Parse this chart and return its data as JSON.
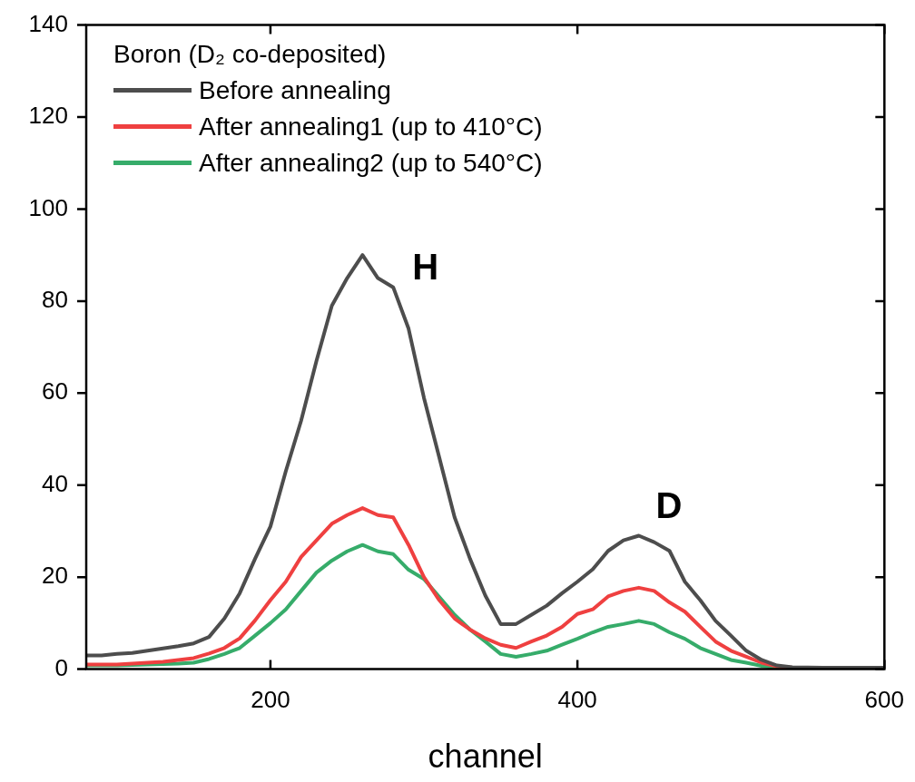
{
  "chart_data": {
    "type": "line",
    "xlabel": "channel",
    "legend_title": "Boron (D₂ co-deposited)",
    "legend": "top left",
    "grid": false,
    "marker": "none",
    "line_style": "solid",
    "x": [
      80,
      90,
      100,
      110,
      120,
      130,
      140,
      150,
      160,
      170,
      180,
      190,
      200,
      210,
      220,
      230,
      240,
      250,
      260,
      270,
      280,
      290,
      300,
      310,
      320,
      330,
      340,
      350,
      360,
      370,
      380,
      390,
      400,
      410,
      420,
      430,
      440,
      450,
      460,
      470,
      480,
      490,
      500,
      510,
      520,
      530,
      540,
      560,
      580,
      600
    ],
    "xlim": [
      80,
      600
    ],
    "xticks": [
      200,
      400,
      600
    ],
    "ylim": [
      0,
      140
    ],
    "yticks": [
      0,
      20,
      40,
      60,
      80,
      100,
      120,
      140
    ],
    "series": [
      {
        "name": "Before annealing",
        "color": "#4d4d4d",
        "values": [
          3,
          3,
          3.3,
          3.5,
          4,
          4.5,
          5,
          5.6,
          7,
          11,
          16.5,
          24,
          31,
          43,
          54,
          67,
          79,
          85,
          90,
          85,
          83,
          74,
          59,
          46,
          33,
          24,
          16,
          9.8,
          9.8,
          11.8,
          13.8,
          16.5,
          19,
          21.7,
          25.7,
          28,
          29,
          27.6,
          25.7,
          19,
          15,
          10.5,
          7.3,
          4,
          2,
          0.8,
          0.4,
          0.3,
          0.3,
          0.3
        ]
      },
      {
        "name": "After annealing1 (up to 410°C)",
        "color": "#ef4040",
        "values": [
          1,
          1,
          1,
          1.2,
          1.4,
          1.6,
          2,
          2.4,
          3.4,
          4.6,
          6.7,
          10.6,
          15,
          19,
          24.4,
          28,
          31.6,
          33.5,
          35,
          33.5,
          33,
          27,
          20,
          15,
          11,
          8.6,
          6.7,
          5.3,
          4.6,
          6,
          7.3,
          9.2,
          12,
          13,
          15.8,
          17,
          17.7,
          17,
          14.5,
          12.5,
          9.2,
          6,
          4,
          2.7,
          1.4,
          0.6,
          0.3,
          null,
          null,
          null
        ]
      },
      {
        "name": "After annealing2 (up to 540°C)",
        "color": "#36ac6a",
        "values": [
          0.8,
          0.8,
          0.8,
          0.9,
          1,
          1.1,
          1.2,
          1.4,
          2.2,
          3.3,
          4.6,
          7.3,
          10,
          13,
          17,
          21,
          23.6,
          25.6,
          27,
          25.6,
          25,
          21.6,
          19.6,
          15.7,
          11.8,
          8.6,
          6,
          3.3,
          2.7,
          3.3,
          4,
          5.3,
          6.6,
          8,
          9.2,
          9.8,
          10.5,
          9.8,
          8,
          6.6,
          4.6,
          3.3,
          2,
          1.4,
          0.7,
          0.3,
          0.2,
          null,
          null,
          null
        ]
      }
    ],
    "annotations": [
      "H",
      "D"
    ]
  }
}
